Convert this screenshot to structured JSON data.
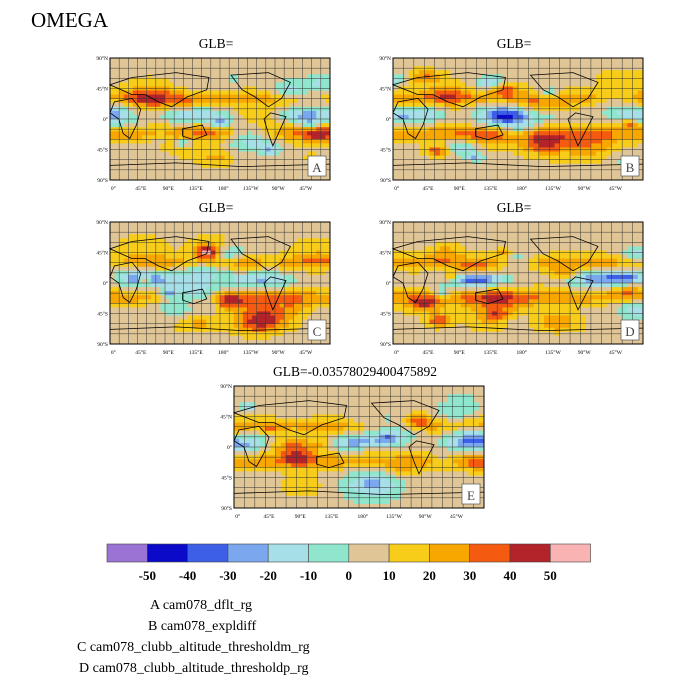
{
  "figure": {
    "title": "OMEGA"
  },
  "colors": {
    "c1": "#9a73d4",
    "c2": "#0a0ac8",
    "c3": "#3d5ee6",
    "c4": "#7ba7ee",
    "c5": "#a7dfe8",
    "c6": "#8fe6cd",
    "c7": "#e0c596",
    "c8": "#f7cd1a",
    "c9": "#f7a700",
    "c10": "#f45a10",
    "c11": "#b3232a",
    "c12": "#f9b3b3"
  },
  "chart_data": {
    "type": "heatmap",
    "variable": "OMEGA",
    "x_ticks": [
      "0°",
      "45°E",
      "90°E",
      "135°E",
      "180°",
      "135°W",
      "90°W",
      "45°W"
    ],
    "y_ticks": [
      "90°N",
      "45°N",
      "0°",
      "45°S",
      "90°S"
    ],
    "panels": [
      {
        "letter": "A",
        "title": "GLB="
      },
      {
        "letter": "B",
        "title": "GLB="
      },
      {
        "letter": "C",
        "title": "GLB="
      },
      {
        "letter": "D",
        "title": "GLB="
      },
      {
        "letter": "E",
        "title": "GLB=-0.03578029400475892"
      }
    ],
    "colorbar": {
      "levels": [
        "-50",
        "-40",
        "-30",
        "-20",
        "-10",
        "0",
        "10",
        "20",
        "30",
        "40",
        "50"
      ],
      "colors": [
        "#9a73d4",
        "#0a0ac8",
        "#3d5ee6",
        "#7ba7ee",
        "#a7dfe8",
        "#8fe6cd",
        "#e0c596",
        "#f7cd1a",
        "#f7a700",
        "#f45a10",
        "#b3232a",
        "#f9b3b3"
      ]
    },
    "cases": [
      "A  cam078_dflt_rg",
      "B  cam078_expldiff",
      "C  cam078_clubb_altitude_thresholdm_rg",
      "D  cam078_clubb_altitude_thresholdp_rg"
    ]
  }
}
